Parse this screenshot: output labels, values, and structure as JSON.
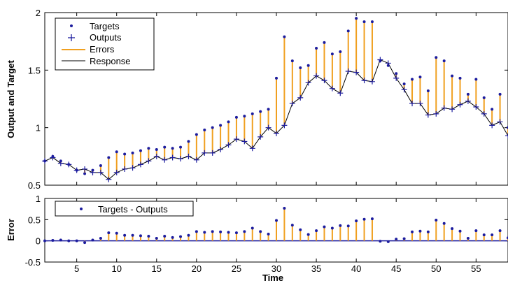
{
  "chart_data": [
    {
      "type": "line",
      "ylabel": "Output and Target",
      "xlim": [
        1,
        59
      ],
      "ylim": [
        0.5,
        2
      ],
      "yticks": [
        0.5,
        1,
        1.5,
        2
      ],
      "legend_position": "top-left",
      "colors": {
        "targets": "#1c1c9e",
        "outputs": "#1c1c9e",
        "errors": "#f0a020",
        "response": "#000000"
      },
      "legend": [
        "Targets",
        "Outputs",
        "Errors",
        "Response"
      ],
      "x": [
        1,
        2,
        3,
        4,
        5,
        6,
        7,
        8,
        9,
        10,
        11,
        12,
        13,
        14,
        15,
        16,
        17,
        18,
        19,
        20,
        21,
        22,
        23,
        24,
        25,
        26,
        27,
        28,
        29,
        30,
        31,
        32,
        33,
        34,
        35,
        36,
        37,
        38,
        39,
        40,
        41,
        42,
        43,
        44,
        45,
        46,
        47,
        48,
        49,
        50,
        51,
        52,
        53,
        54,
        55,
        56,
        57,
        58,
        59
      ],
      "series": [
        {
          "name": "Targets",
          "values": [
            0.71,
            0.75,
            0.71,
            0.68,
            0.63,
            0.6,
            0.63,
            0.67,
            0.74,
            0.79,
            0.77,
            0.78,
            0.8,
            0.82,
            0.81,
            0.83,
            0.82,
            0.83,
            0.88,
            0.94,
            0.98,
            1.0,
            1.02,
            1.05,
            1.09,
            1.1,
            1.12,
            1.14,
            1.16,
            1.43,
            1.79,
            1.58,
            1.52,
            1.54,
            1.69,
            1.74,
            1.64,
            1.66,
            1.84,
            1.95,
            1.92,
            1.92,
            1.58,
            1.54,
            1.47,
            1.38,
            1.42,
            1.44,
            1.32,
            1.61,
            1.58,
            1.45,
            1.43,
            1.29,
            1.42,
            1.26,
            1.16,
            1.29,
            1.0
          ]
        },
        {
          "name": "Outputs",
          "values": [
            0.71,
            0.74,
            0.69,
            0.68,
            0.63,
            0.64,
            0.61,
            0.61,
            0.55,
            0.61,
            0.64,
            0.65,
            0.68,
            0.71,
            0.75,
            0.72,
            0.74,
            0.73,
            0.75,
            0.72,
            0.78,
            0.78,
            0.81,
            0.85,
            0.9,
            0.88,
            0.82,
            0.92,
            1.0,
            0.95,
            1.02,
            1.21,
            1.26,
            1.39,
            1.45,
            1.41,
            1.34,
            1.3,
            1.49,
            1.48,
            1.41,
            1.4,
            1.59,
            1.56,
            1.43,
            1.33,
            1.21,
            1.21,
            1.11,
            1.12,
            1.17,
            1.16,
            1.2,
            1.23,
            1.18,
            1.12,
            1.02,
            1.05,
            0.93
          ]
        }
      ]
    },
    {
      "type": "bar",
      "xlabel": "Time",
      "ylabel": "Error",
      "xlim": [
        1,
        59
      ],
      "ylim": [
        -0.5,
        1
      ],
      "yticks": [
        -0.5,
        0,
        0.5,
        1
      ],
      "xticks": [
        5,
        10,
        15,
        20,
        25,
        30,
        35,
        40,
        45,
        50,
        55
      ],
      "legend_position": "top-left",
      "legend": [
        "Targets - Outputs"
      ],
      "colors": {
        "markers": "#1c1c9e",
        "stems": "#f0a020"
      },
      "series": [
        {
          "name": "Targets - Outputs",
          "values": [
            0.0,
            0.01,
            0.02,
            0.0,
            0.0,
            -0.04,
            0.02,
            0.06,
            0.19,
            0.18,
            0.13,
            0.13,
            0.12,
            0.11,
            0.06,
            0.11,
            0.08,
            0.1,
            0.13,
            0.22,
            0.2,
            0.22,
            0.21,
            0.2,
            0.19,
            0.22,
            0.3,
            0.22,
            0.16,
            0.48,
            0.77,
            0.37,
            0.26,
            0.15,
            0.24,
            0.33,
            0.3,
            0.36,
            0.35,
            0.47,
            0.51,
            0.52,
            -0.01,
            -0.02,
            0.04,
            0.05,
            0.21,
            0.23,
            0.21,
            0.49,
            0.41,
            0.29,
            0.23,
            0.06,
            0.24,
            0.14,
            0.14,
            0.24,
            0.07
          ]
        }
      ]
    }
  ]
}
